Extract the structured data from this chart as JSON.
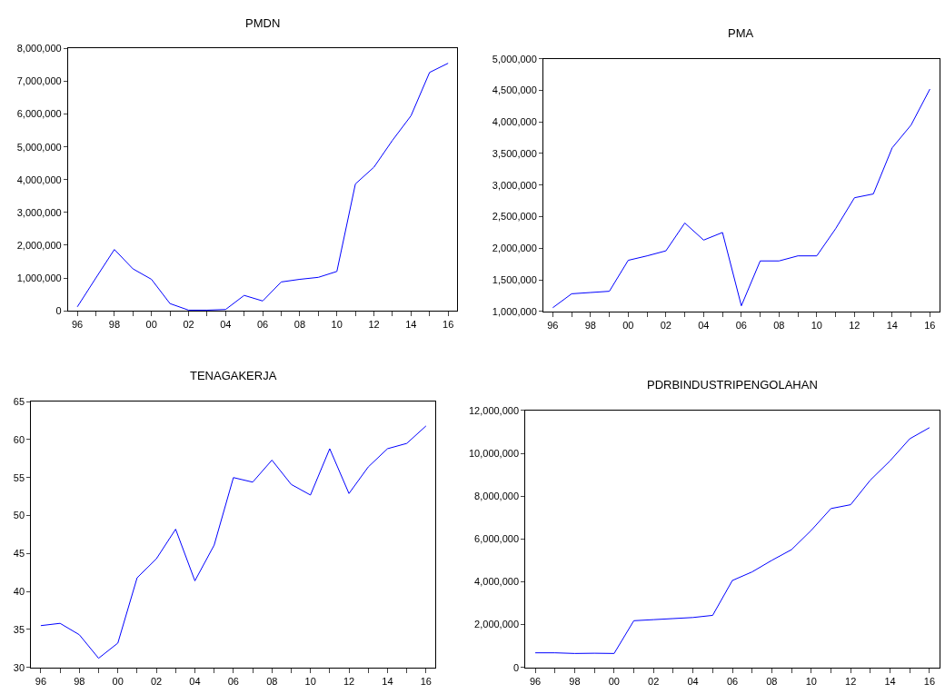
{
  "chart_data": [
    {
      "type": "line",
      "title": "PMDN",
      "x": [
        1996,
        1997,
        1998,
        1999,
        2000,
        2001,
        2002,
        2003,
        2004,
        2005,
        2006,
        2007,
        2008,
        2009,
        2010,
        2011,
        2012,
        2013,
        2014,
        2015,
        2016
      ],
      "series": [
        {
          "color": "#0000ff",
          "values": [
            120000,
            1000000,
            1870000,
            1280000,
            960000,
            220000,
            20000,
            20000,
            40000,
            470000,
            300000,
            880000,
            960000,
            1020000,
            1200000,
            3870000,
            4380000,
            5200000,
            5950000,
            7270000,
            7550000
          ]
        }
      ],
      "xlim": [
        1995.5,
        2016.5
      ],
      "xticks": [
        {
          "value": 1996,
          "label": "96"
        },
        {
          "value": 1997,
          "label": null
        },
        {
          "value": 1998,
          "label": "98"
        },
        {
          "value": 1999,
          "label": null
        },
        {
          "value": 2000,
          "label": "00"
        },
        {
          "value": 2001,
          "label": null
        },
        {
          "value": 2002,
          "label": "02"
        },
        {
          "value": 2003,
          "label": null
        },
        {
          "value": 2004,
          "label": "04"
        },
        {
          "value": 2005,
          "label": null
        },
        {
          "value": 2006,
          "label": "06"
        },
        {
          "value": 2007,
          "label": null
        },
        {
          "value": 2008,
          "label": "08"
        },
        {
          "value": 2009,
          "label": null
        },
        {
          "value": 2010,
          "label": "10"
        },
        {
          "value": 2011,
          "label": null
        },
        {
          "value": 2012,
          "label": "12"
        },
        {
          "value": 2013,
          "label": null
        },
        {
          "value": 2014,
          "label": "14"
        },
        {
          "value": 2015,
          "label": null
        },
        {
          "value": 2016,
          "label": "16"
        }
      ],
      "ylim": [
        0,
        8000000
      ],
      "yticks": [
        0,
        {
          "value": 1000000,
          "label": "1,000,000"
        },
        {
          "value": 2000000,
          "label": "2,000,000"
        },
        {
          "value": 3000000,
          "label": "3,000,000"
        },
        {
          "value": 4000000,
          "label": "4,000,000"
        },
        {
          "value": 5000000,
          "label": "5,000,000"
        },
        {
          "value": 6000000,
          "label": "6,000,000"
        },
        {
          "value": 7000000,
          "label": "7,000,000"
        },
        {
          "value": 8000000,
          "label": "8,000,000"
        }
      ],
      "marker": "none",
      "line_style": "solid"
    },
    {
      "type": "line",
      "title": "PMA",
      "x": [
        1996,
        1997,
        1998,
        1999,
        2000,
        2001,
        2002,
        2003,
        2004,
        2005,
        2006,
        2007,
        2008,
        2009,
        2010,
        2011,
        2012,
        2013,
        2014,
        2015,
        2016
      ],
      "series": [
        {
          "color": "#0000ff",
          "values": [
            1060000,
            1280000,
            1300000,
            1320000,
            1810000,
            1880000,
            1960000,
            2400000,
            2130000,
            2250000,
            1090000,
            1800000,
            1800000,
            1880000,
            1880000,
            2310000,
            2800000,
            2860000,
            3590000,
            3950000,
            4520000
          ]
        }
      ],
      "xlim": [
        1995.5,
        2016.5
      ],
      "xticks": [
        {
          "value": 1996,
          "label": "96"
        },
        {
          "value": 1997,
          "label": null
        },
        {
          "value": 1998,
          "label": "98"
        },
        {
          "value": 1999,
          "label": null
        },
        {
          "value": 2000,
          "label": "00"
        },
        {
          "value": 2001,
          "label": null
        },
        {
          "value": 2002,
          "label": "02"
        },
        {
          "value": 2003,
          "label": null
        },
        {
          "value": 2004,
          "label": "04"
        },
        {
          "value": 2005,
          "label": null
        },
        {
          "value": 2006,
          "label": "06"
        },
        {
          "value": 2007,
          "label": null
        },
        {
          "value": 2008,
          "label": "08"
        },
        {
          "value": 2009,
          "label": null
        },
        {
          "value": 2010,
          "label": "10"
        },
        {
          "value": 2011,
          "label": null
        },
        {
          "value": 2012,
          "label": "12"
        },
        {
          "value": 2013,
          "label": null
        },
        {
          "value": 2014,
          "label": "14"
        },
        {
          "value": 2015,
          "label": null
        },
        {
          "value": 2016,
          "label": "16"
        }
      ],
      "ylim": [
        1000000,
        5000000
      ],
      "yticks": [
        {
          "value": 1000000,
          "label": "1,000,000"
        },
        {
          "value": 1500000,
          "label": "1,500,000"
        },
        {
          "value": 2000000,
          "label": "2,000,000"
        },
        {
          "value": 2500000,
          "label": "2,500,000"
        },
        {
          "value": 3000000,
          "label": "3,000,000"
        },
        {
          "value": 3500000,
          "label": "3,500,000"
        },
        {
          "value": 4000000,
          "label": "4,000,000"
        },
        {
          "value": 4500000,
          "label": "4,500,000"
        },
        {
          "value": 5000000,
          "label": "5,000,000"
        }
      ],
      "marker": "none",
      "line_style": "solid"
    },
    {
      "type": "line",
      "title": "TENAGAKERJA",
      "x": [
        1996,
        1997,
        1998,
        1999,
        2000,
        2001,
        2002,
        2003,
        2004,
        2005,
        2006,
        2007,
        2008,
        2009,
        2010,
        2011,
        2012,
        2013,
        2014,
        2015,
        2016
      ],
      "series": [
        {
          "color": "#0000ff",
          "values": [
            35.5,
            35.8,
            34.3,
            31.2,
            33.2,
            41.8,
            44.3,
            48.2,
            41.4,
            46.1,
            55.0,
            54.4,
            57.3,
            54.1,
            52.7,
            58.8,
            52.9,
            56.4,
            58.8,
            59.5,
            61.8
          ]
        }
      ],
      "xlim": [
        1995.5,
        2016.5
      ],
      "xticks": [
        {
          "value": 1996,
          "label": "96"
        },
        {
          "value": 1997,
          "label": null
        },
        {
          "value": 1998,
          "label": "98"
        },
        {
          "value": 1999,
          "label": null
        },
        {
          "value": 2000,
          "label": "00"
        },
        {
          "value": 2001,
          "label": null
        },
        {
          "value": 2002,
          "label": "02"
        },
        {
          "value": 2003,
          "label": null
        },
        {
          "value": 2004,
          "label": "04"
        },
        {
          "value": 2005,
          "label": null
        },
        {
          "value": 2006,
          "label": "06"
        },
        {
          "value": 2007,
          "label": null
        },
        {
          "value": 2008,
          "label": "08"
        },
        {
          "value": 2009,
          "label": null
        },
        {
          "value": 2010,
          "label": "10"
        },
        {
          "value": 2011,
          "label": null
        },
        {
          "value": 2012,
          "label": "12"
        },
        {
          "value": 2013,
          "label": null
        },
        {
          "value": 2014,
          "label": "14"
        },
        {
          "value": 2015,
          "label": null
        },
        {
          "value": 2016,
          "label": "16"
        }
      ],
      "ylim": [
        30,
        65
      ],
      "yticks": [
        30,
        35,
        40,
        45,
        50,
        55,
        60,
        65
      ],
      "marker": "none",
      "line_style": "solid"
    },
    {
      "type": "line",
      "title": "PDRBINDUSTRIPENGOLAHAN",
      "x": [
        1996,
        1997,
        1998,
        1999,
        2000,
        2001,
        2002,
        2003,
        2004,
        2005,
        2006,
        2007,
        2008,
        2009,
        2010,
        2011,
        2012,
        2013,
        2014,
        2015,
        2016
      ],
      "series": [
        {
          "color": "#0000ff",
          "values": [
            680000,
            680000,
            650000,
            660000,
            650000,
            2180000,
            2230000,
            2280000,
            2330000,
            2430000,
            4060000,
            4460000,
            5000000,
            5500000,
            6400000,
            7420000,
            7600000,
            8750000,
            9650000,
            10680000,
            11200000
          ]
        }
      ],
      "xlim": [
        1995.5,
        2016.5
      ],
      "xticks": [
        {
          "value": 1996,
          "label": "96"
        },
        {
          "value": 1997,
          "label": null
        },
        {
          "value": 1998,
          "label": "98"
        },
        {
          "value": 1999,
          "label": null
        },
        {
          "value": 2000,
          "label": "00"
        },
        {
          "value": 2001,
          "label": null
        },
        {
          "value": 2002,
          "label": "02"
        },
        {
          "value": 2003,
          "label": null
        },
        {
          "value": 2004,
          "label": "04"
        },
        {
          "value": 2005,
          "label": null
        },
        {
          "value": 2006,
          "label": "06"
        },
        {
          "value": 2007,
          "label": null
        },
        {
          "value": 2008,
          "label": "08"
        },
        {
          "value": 2009,
          "label": null
        },
        {
          "value": 2010,
          "label": "10"
        },
        {
          "value": 2011,
          "label": null
        },
        {
          "value": 2012,
          "label": "12"
        },
        {
          "value": 2013,
          "label": null
        },
        {
          "value": 2014,
          "label": "14"
        },
        {
          "value": 2015,
          "label": null
        },
        {
          "value": 2016,
          "label": "16"
        }
      ],
      "ylim": [
        0,
        12000000
      ],
      "yticks": [
        0,
        {
          "value": 2000000,
          "label": "2,000,000"
        },
        {
          "value": 4000000,
          "label": "4,000,000"
        },
        {
          "value": 6000000,
          "label": "6,000,000"
        },
        {
          "value": 8000000,
          "label": "8,000,000"
        },
        {
          "value": 10000000,
          "label": "10,000,000"
        },
        {
          "value": 12000000,
          "label": "12,000,000"
        }
      ],
      "marker": "none",
      "line_style": "solid"
    }
  ]
}
